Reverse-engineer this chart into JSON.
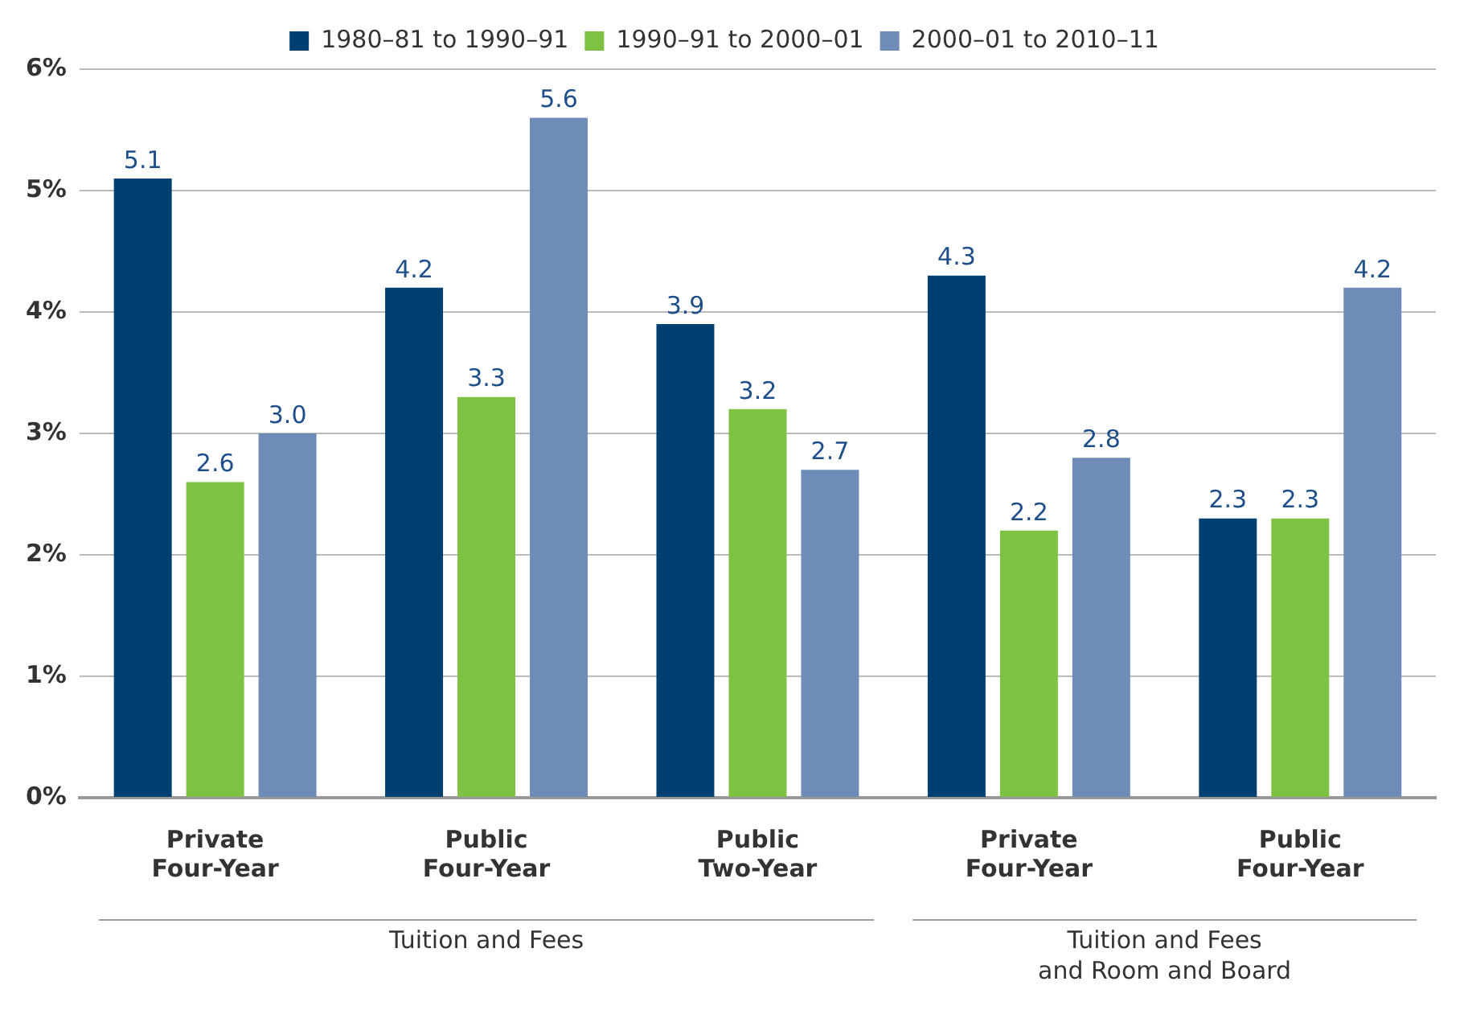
{
  "chart_data": {
    "type": "bar",
    "categories": [
      "Private\nFour-Year",
      "Public\nFour-Year",
      "Public\nTwo-Year",
      "Private\nFour-Year",
      "Public\nFour-Year"
    ],
    "series": [
      {
        "name": "1980–81 to 1990–91",
        "color": "#003f72",
        "values": [
          5.1,
          4.2,
          3.9,
          4.3,
          2.3
        ],
        "value_labels": [
          "5.1",
          "4.2",
          "3.9",
          "4.3",
          "2.3"
        ]
      },
      {
        "name": "1990–91 to 2000–01",
        "color": "#7dc242",
        "values": [
          2.6,
          3.3,
          3.2,
          2.2,
          2.3
        ],
        "value_labels": [
          "2.6",
          "3.3",
          "3.2",
          "2.2",
          "2.3"
        ]
      },
      {
        "name": "2000–01 to 2010–11",
        "color": "#6f8cb8",
        "values": [
          3.0,
          5.6,
          2.7,
          2.8,
          4.2
        ],
        "value_labels": [
          "3.0",
          "5.6",
          "2.7",
          "2.8",
          "4.2"
        ]
      }
    ],
    "ylim": [
      0,
      6
    ],
    "yticks": [
      {
        "value": 0,
        "label": "0%"
      },
      {
        "value": 1,
        "label": "1%"
      },
      {
        "value": 2,
        "label": "2%"
      },
      {
        "value": 3,
        "label": "3%"
      },
      {
        "value": 4,
        "label": "4%"
      },
      {
        "value": 5,
        "label": "5%"
      },
      {
        "value": 6,
        "label": "6%"
      }
    ],
    "grid": "y",
    "legend": "top",
    "annotations": [
      "Tuition and Fees",
      "Tuition and Fees\nand Room and Board"
    ]
  }
}
